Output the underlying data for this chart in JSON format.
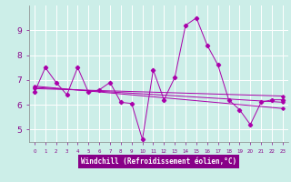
{
  "background_color": "#cceee8",
  "grid_color": "#ffffff",
  "line_color": "#aa00aa",
  "x_label": "Windchill (Refroidissement éolien,°C)",
  "y_ticks": [
    5,
    6,
    7,
    8,
    9
  ],
  "x_range": [
    -0.5,
    23.5
  ],
  "y_range": [
    4.5,
    10.0
  ],
  "series": [
    {
      "x": [
        0,
        1,
        2,
        3,
        4,
        5,
        6,
        7,
        8,
        9,
        10,
        11,
        12,
        13,
        14,
        15,
        16,
        17,
        18,
        19,
        20,
        21,
        22,
        23
      ],
      "y": [
        6.5,
        7.5,
        6.9,
        6.4,
        7.5,
        6.5,
        6.6,
        6.9,
        6.1,
        6.05,
        4.6,
        7.4,
        6.2,
        7.1,
        9.2,
        9.5,
        8.4,
        7.6,
        6.2,
        5.8,
        5.2,
        6.1,
        6.2,
        6.2
      ]
    },
    {
      "x": [
        0,
        23
      ],
      "y": [
        6.65,
        6.35
      ]
    },
    {
      "x": [
        0,
        23
      ],
      "y": [
        6.7,
        6.1
      ]
    },
    {
      "x": [
        0,
        23
      ],
      "y": [
        6.75,
        5.85
      ]
    }
  ]
}
